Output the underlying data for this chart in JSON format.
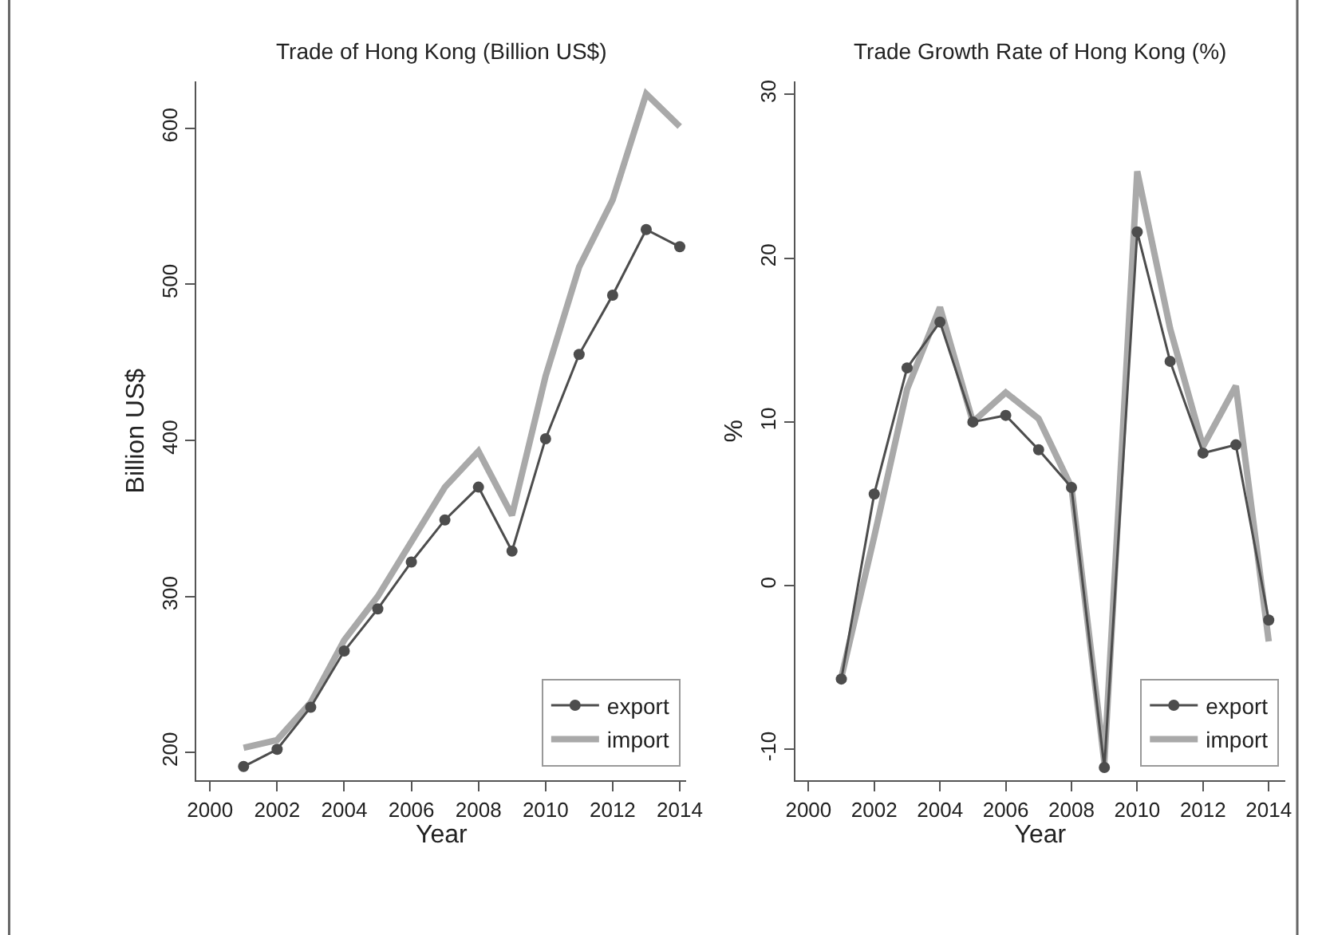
{
  "chart_data": [
    {
      "type": "line",
      "title": "Trade of Hong Kong (Billion US$)",
      "xlabel": "Year",
      "ylabel": "Billion US$",
      "x": [
        2001,
        2002,
        2003,
        2004,
        2005,
        2006,
        2007,
        2008,
        2009,
        2010,
        2011,
        2012,
        2013,
        2014
      ],
      "series": [
        {
          "name": "export",
          "color": "#4d4d4d",
          "marker": "circle",
          "values": [
            191,
            202,
            229,
            265,
            292,
            322,
            349,
            370,
            329,
            401,
            455,
            493,
            535,
            524
          ]
        },
        {
          "name": "import",
          "color": "#a9a9a9",
          "marker": "none",
          "values": [
            203,
            208,
            232,
            272,
            300,
            335,
            370,
            393,
            352,
            441,
            511,
            554,
            622,
            601
          ]
        }
      ],
      "xlim": [
        1999.6,
        2014.2
      ],
      "xticks": [
        2000,
        2002,
        2004,
        2006,
        2008,
        2010,
        2012,
        2014
      ],
      "ylim": [
        182,
        630
      ],
      "yticks": [
        200,
        300,
        400,
        500,
        600
      ],
      "legend": "bottom right"
    },
    {
      "type": "line",
      "title": "Trade Growth Rate of Hong Kong (%)",
      "xlabel": "Year",
      "ylabel": "%",
      "x": [
        2001,
        2002,
        2003,
        2004,
        2005,
        2006,
        2007,
        2008,
        2009,
        2010,
        2011,
        2012,
        2013,
        2014
      ],
      "series": [
        {
          "name": "export",
          "color": "#4d4d4d",
          "marker": "circle",
          "values": [
            -5.7,
            5.6,
            13.3,
            16.1,
            10.0,
            10.4,
            8.3,
            6.0,
            -11.1,
            21.6,
            13.7,
            8.1,
            8.6,
            -2.1
          ]
        },
        {
          "name": "import",
          "color": "#a9a9a9",
          "marker": "none",
          "values": [
            -5.6,
            3.0,
            12.0,
            17.0,
            10.0,
            11.8,
            10.2,
            6.0,
            -10.8,
            25.3,
            15.7,
            8.5,
            12.2,
            -3.4
          ]
        }
      ],
      "xlim": [
        1999.6,
        2014.5
      ],
      "xticks": [
        2000,
        2002,
        2004,
        2006,
        2008,
        2010,
        2012,
        2014
      ],
      "ylim": [
        -11.9,
        30.8
      ],
      "yticks": [
        -10,
        0,
        10,
        20,
        30
      ],
      "legend": "bottom right"
    }
  ]
}
